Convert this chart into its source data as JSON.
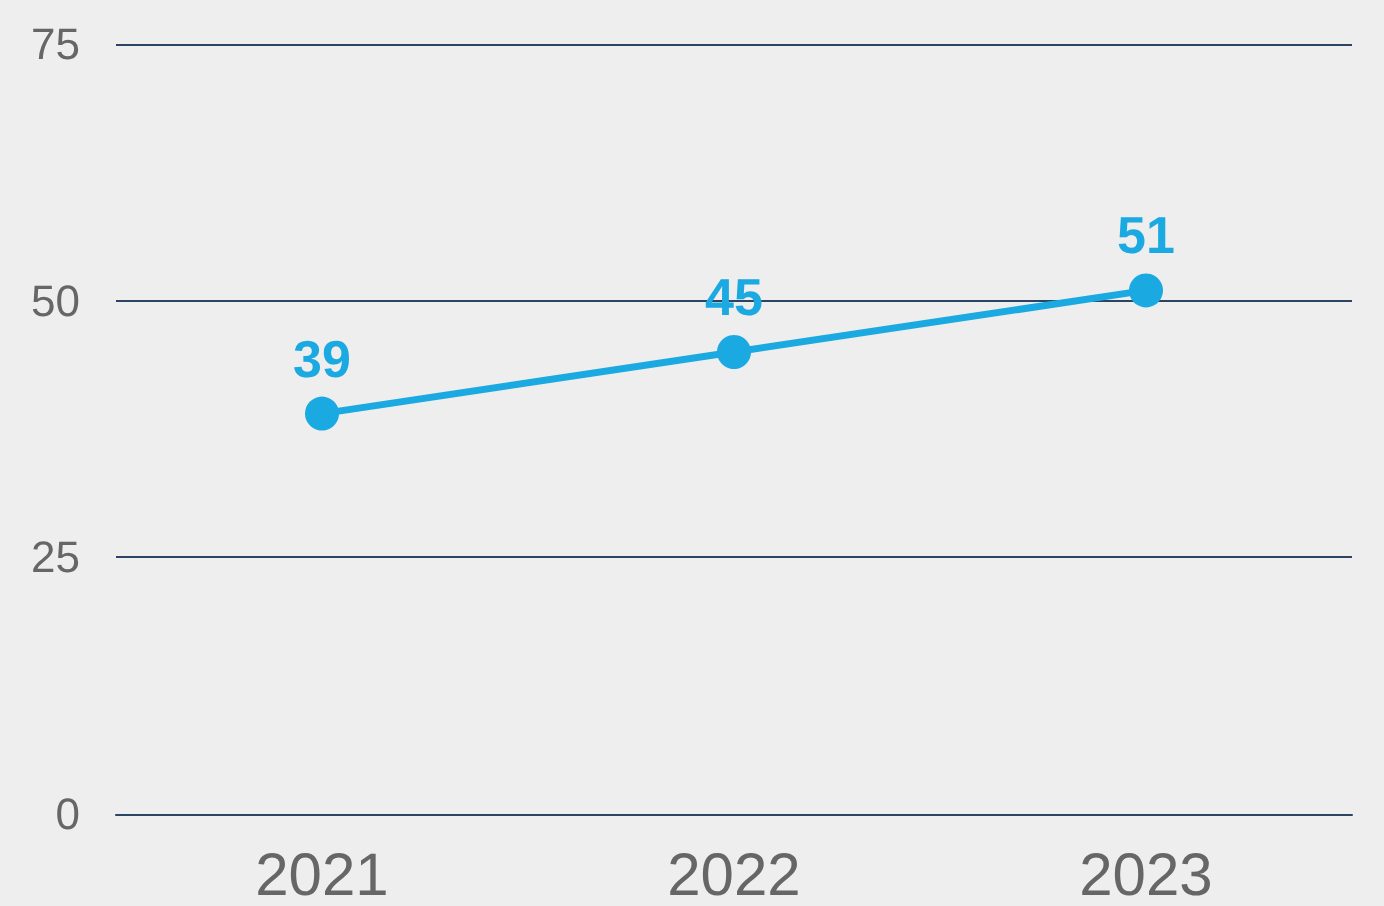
{
  "chart_data": {
    "type": "line",
    "categories": [
      "2021",
      "2022",
      "2023"
    ],
    "series": [
      {
        "color": "#1ba9e1",
        "values": [
          39,
          45,
          51
        ]
      }
    ],
    "ylim": [
      0,
      75
    ],
    "yticks": [
      0,
      25,
      50,
      75
    ],
    "grid": "y",
    "data_labels": true,
    "marker": "circle",
    "line_style": "solid"
  }
}
